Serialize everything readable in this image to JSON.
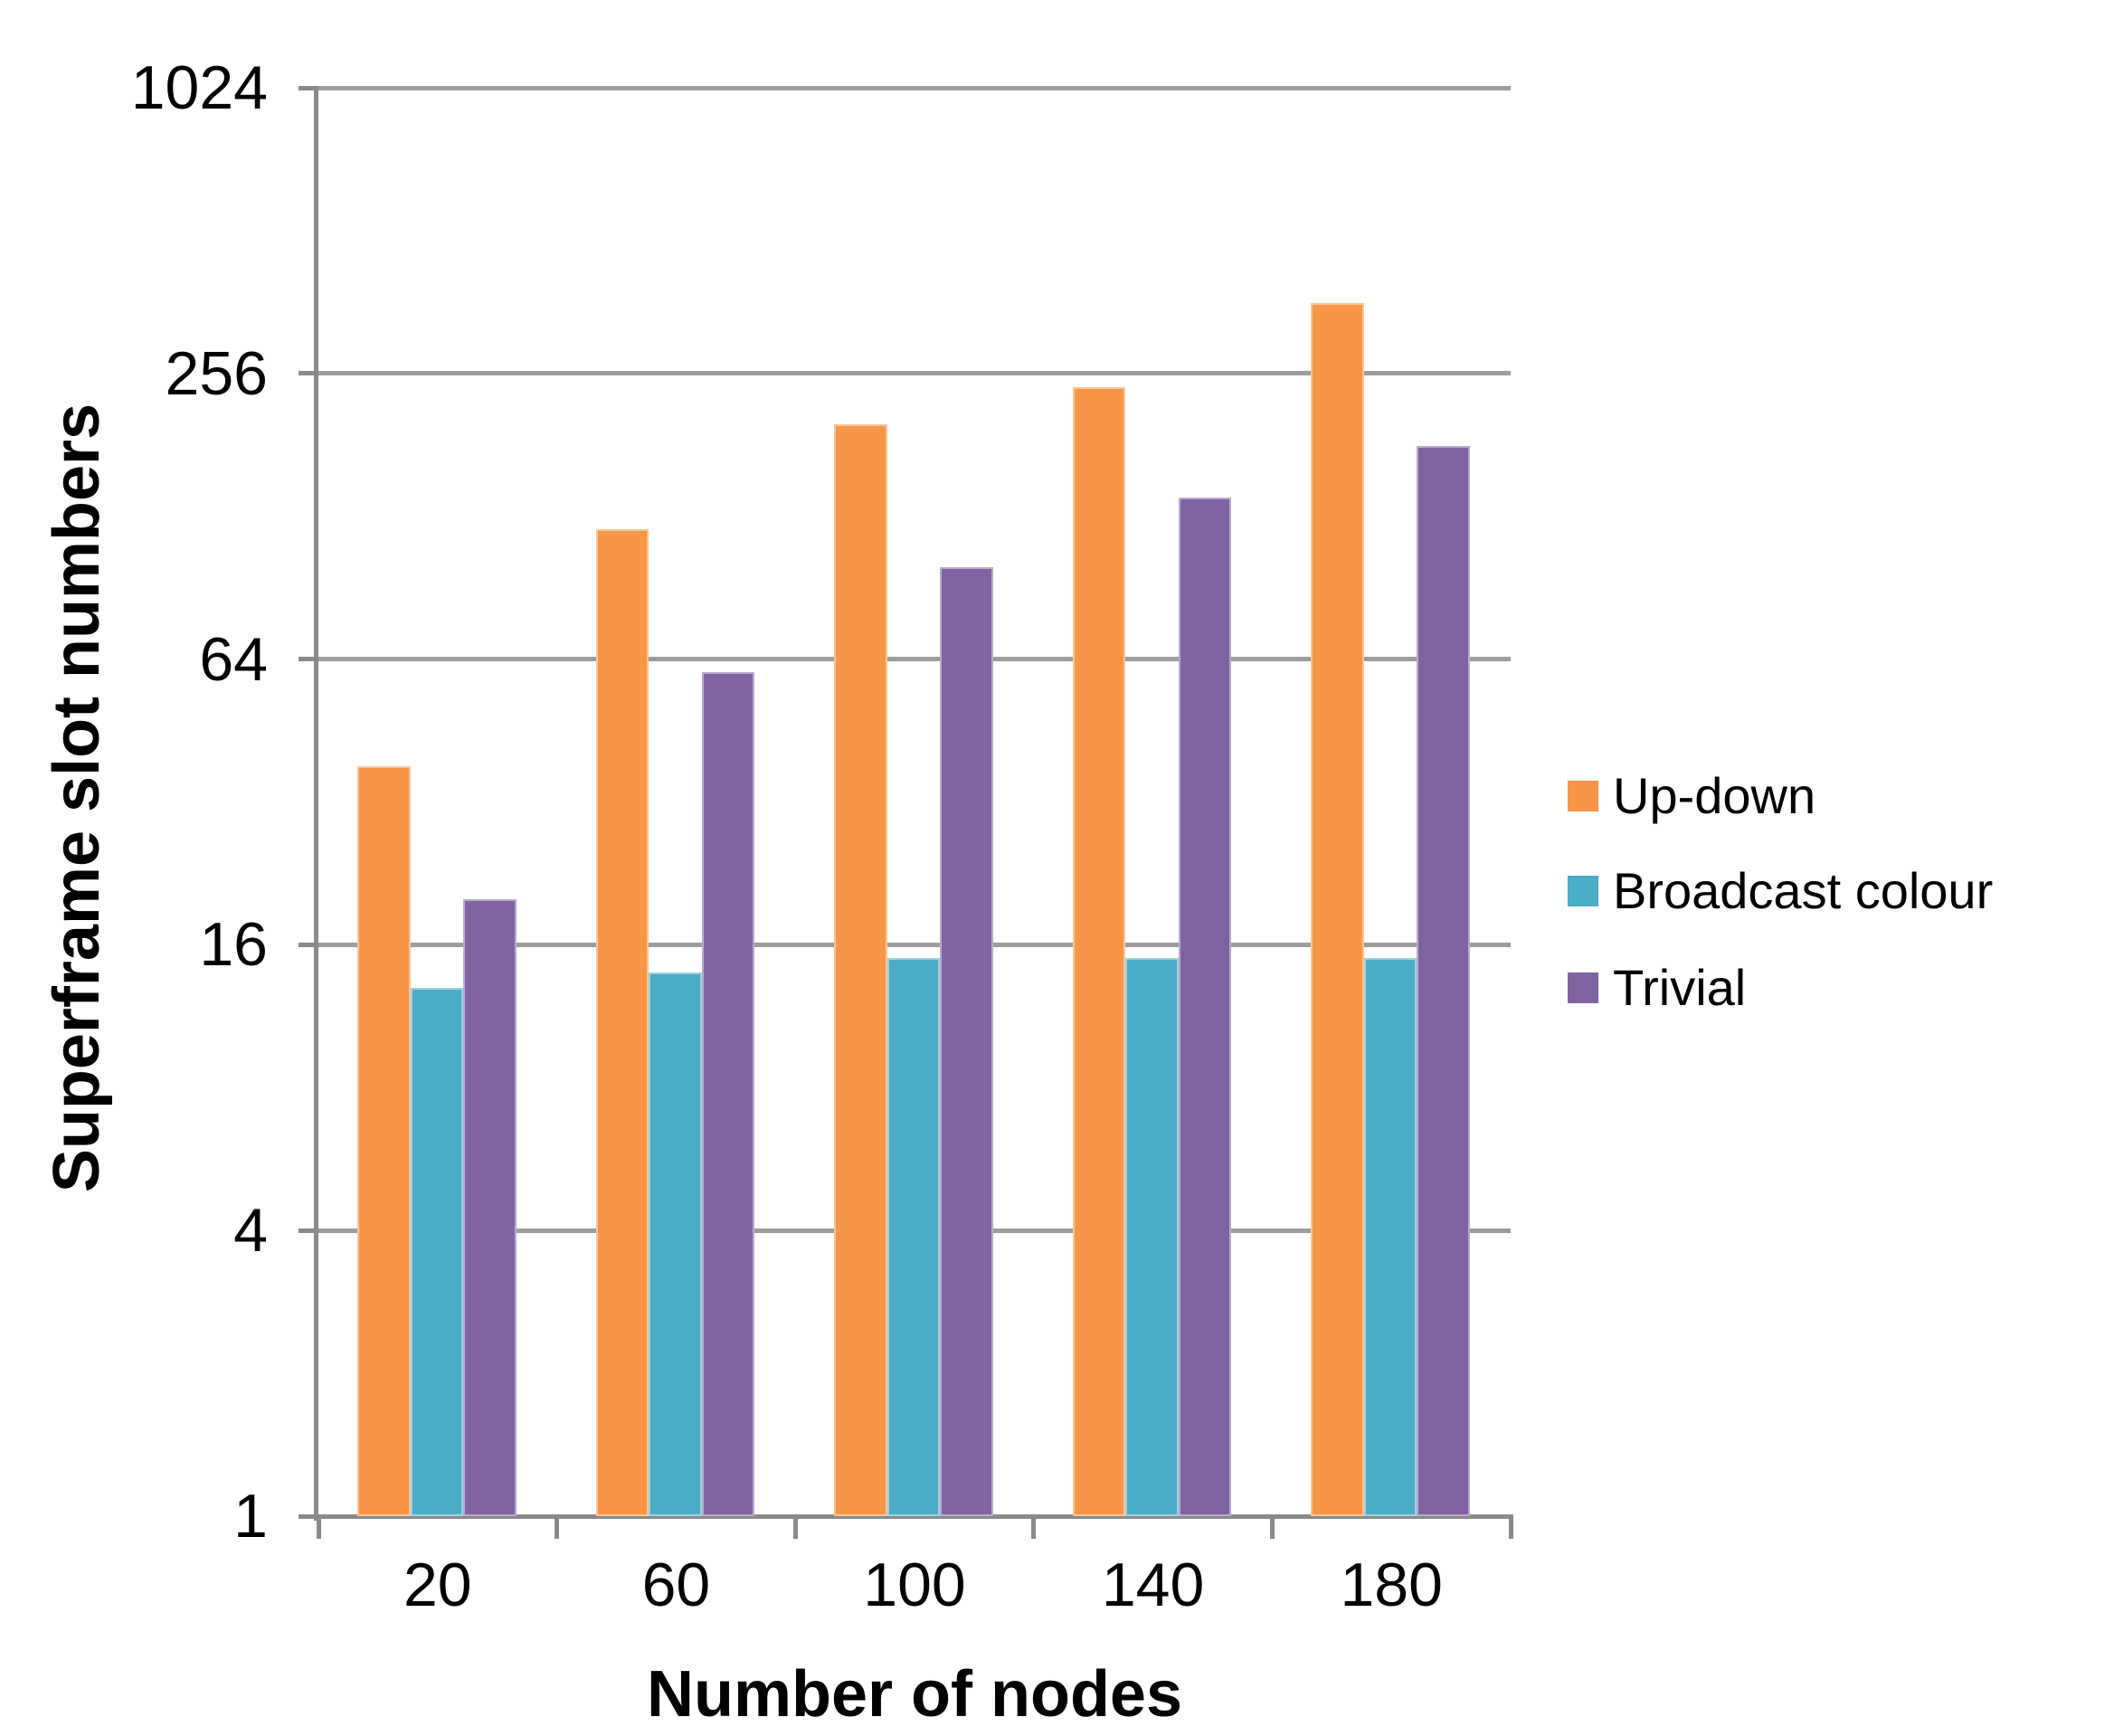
{
  "chart_data": {
    "type": "bar",
    "title": "",
    "xlabel": "Number of nodes",
    "ylabel": "Superframe slot numbers",
    "categories": [
      "20",
      "60",
      "100",
      "140",
      "180"
    ],
    "series": [
      {
        "name": "Up-down",
        "color": "#F79646",
        "values": [
          38,
          120,
          200,
          240,
          360
        ]
      },
      {
        "name": "Broadcast colour",
        "color": "#4BACC6",
        "values": [
          13,
          14,
          15,
          15,
          15
        ]
      },
      {
        "name": "Trivial",
        "color": "#8064A2",
        "values": [
          20,
          60,
          100,
          140,
          180
        ]
      }
    ],
    "y_axis": {
      "scale": "log4",
      "min": 1,
      "max": 1024,
      "ticks": [
        "1",
        "4",
        "16",
        "64",
        "256",
        "1024"
      ]
    },
    "grid": true,
    "legend_position": "right",
    "grid_color": "#9d9d9d",
    "axis_color": "#8a8a8a",
    "background_color": "#ffffff",
    "text_color": "#000000"
  }
}
